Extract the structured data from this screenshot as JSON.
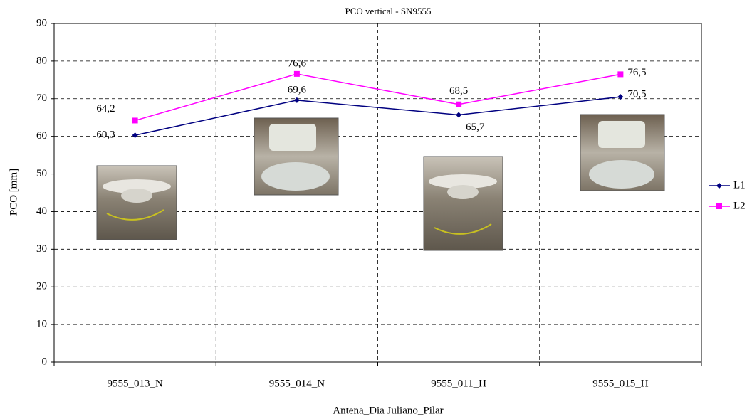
{
  "chart_data": {
    "type": "line",
    "title": "PCO vertical - SN9555",
    "x_label": "Antena_Dia Juliano_Pilar",
    "y_label": "PCO [mm]",
    "categories": [
      "9555_013_N",
      "9555_014_N",
      "9555_011_H",
      "9555_015_H"
    ],
    "series": [
      {
        "name": "L1",
        "color": "#000080",
        "marker": "diamond",
        "values": [
          60.3,
          69.6,
          65.7,
          70.5
        ],
        "value_labels": [
          "60,3",
          "69,6",
          "65,7",
          "70,5"
        ]
      },
      {
        "name": "L2",
        "color": "#ff00ff",
        "marker": "square",
        "values": [
          64.2,
          76.6,
          68.5,
          76.5
        ],
        "value_labels": [
          "64,2",
          "76,6",
          "68,5",
          "76,5"
        ]
      }
    ],
    "ylim": [
      0,
      90
    ],
    "yticks": [
      0,
      10,
      20,
      30,
      40,
      50,
      60,
      70,
      80,
      90
    ],
    "grid": true,
    "legend": "right"
  }
}
